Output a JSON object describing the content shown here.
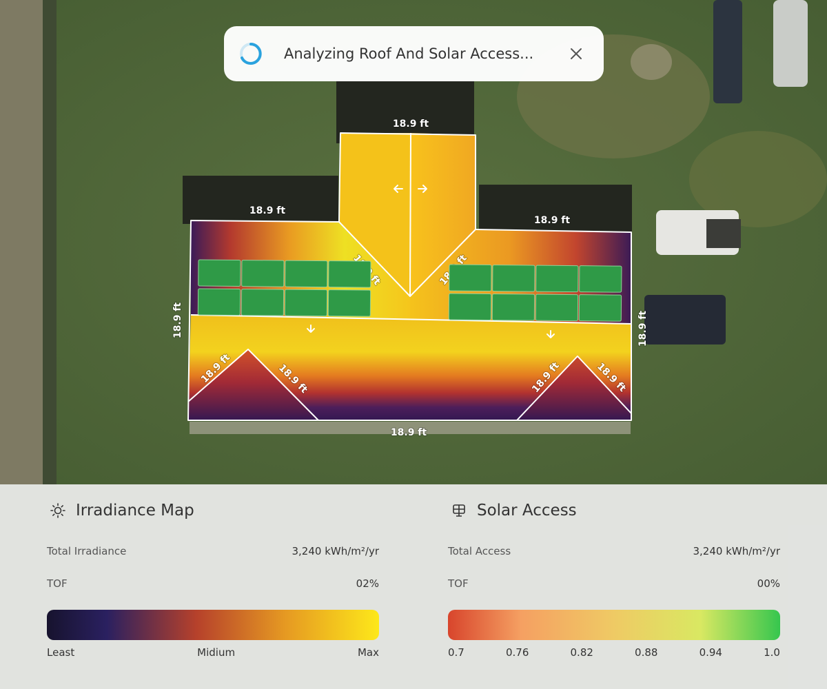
{
  "toast": {
    "message": "Analyzing Roof And Solar Access..."
  },
  "dimension_labels": [
    "18.9 ft",
    "18.9 ft",
    "18.9 ft",
    "18.9 ft",
    "18.9 ft",
    "18.9 ft",
    "18.9 ft",
    "18.9 ft",
    "18.9 ft",
    "18.9 ft",
    "18.9 ft",
    "18.9 ft"
  ],
  "panels": [
    {
      "title": "Irradiance Map",
      "rows": [
        {
          "label": "Total Irradiance",
          "value": "3,240 kWh/m²/yr"
        },
        {
          "label": "TOF",
          "value": "02%"
        }
      ],
      "scale": [
        "Least",
        "Midium",
        "Max"
      ]
    },
    {
      "title": "Solar Access",
      "rows": [
        {
          "label": "Total Access",
          "value": "3,240 kWh/m²/yr"
        },
        {
          "label": "TOF",
          "value": "00%"
        }
      ],
      "scale": [
        "0.7",
        "0.76",
        "0.82",
        "0.88",
        "0.94",
        "1.0"
      ]
    }
  ]
}
